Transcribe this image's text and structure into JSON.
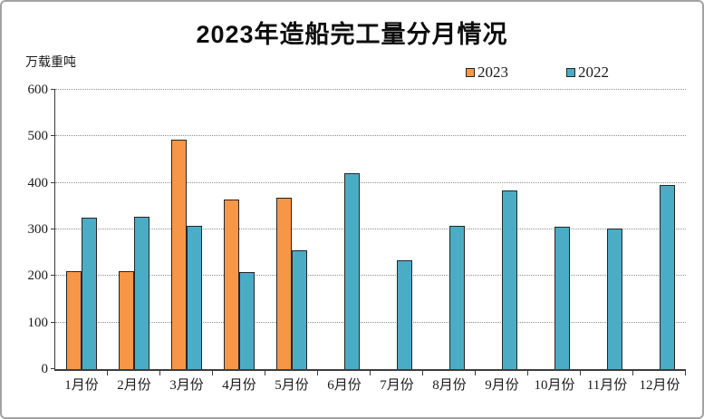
{
  "chart_data": {
    "type": "bar",
    "title": "2023年造船完工量分月情况",
    "ylabel": "万载重吨",
    "xlabel": "",
    "ylim": [
      0,
      600
    ],
    "ytick_interval": 100,
    "grid": "horizontal-dotted",
    "legend_position": "top-right",
    "categories": [
      "1月份",
      "2月份",
      "3月份",
      "4月份",
      "5月份",
      "6月份",
      "7月份",
      "8月份",
      "9月份",
      "10月份",
      "11月份",
      "12月份"
    ],
    "series": [
      {
        "name": "2023",
        "color": "#F79646",
        "values": [
          210,
          210,
          493,
          364,
          368,
          null,
          null,
          null,
          null,
          null,
          null,
          null
        ]
      },
      {
        "name": "2022",
        "color": "#4BACC6",
        "values": [
          325,
          327,
          307,
          208,
          255,
          421,
          233,
          308,
          384,
          305,
          302,
          395
        ]
      }
    ],
    "bar_border_color": "#262626",
    "axis_color": "#3c3c3c",
    "gridline_color": "#8f8f8f"
  }
}
